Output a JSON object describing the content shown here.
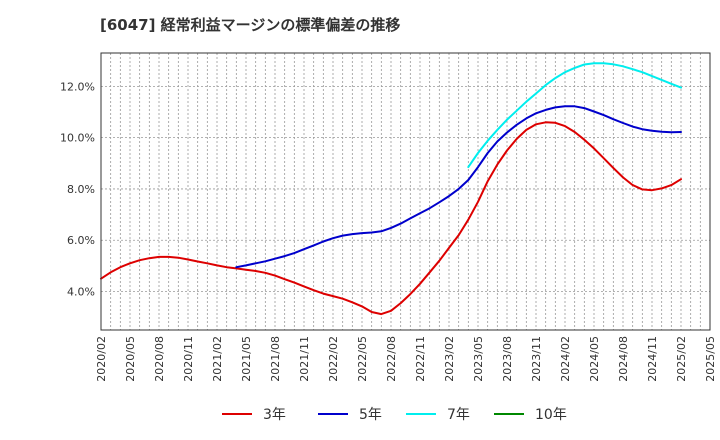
{
  "chart_data": {
    "type": "line",
    "title": "[6047]  経常利益マージンの標準偏差の推移",
    "xlabel": "",
    "ylabel": "",
    "ylim": [
      2.5,
      13.3
    ],
    "y_ticks": [
      "4.0%",
      "6.0%",
      "8.0%",
      "10.0%",
      "12.0%"
    ],
    "y_tick_values": [
      4,
      6,
      8,
      10,
      12
    ],
    "x_ticks": [
      "2020/02",
      "2020/05",
      "2020/08",
      "2020/11",
      "2021/02",
      "2021/05",
      "2021/08",
      "2021/11",
      "2022/02",
      "2022/05",
      "2022/08",
      "2022/11",
      "2023/02",
      "2023/05",
      "2023/08",
      "2023/11",
      "2024/02",
      "2024/05",
      "2024/08",
      "2024/11",
      "2025/02",
      "2025/05"
    ],
    "grid": true,
    "legend_position": "bottom",
    "series": [
      {
        "name": "3年",
        "color": "#dd0000",
        "points": [
          [
            "2020/02",
            4.5
          ],
          [
            "2020/03",
            4.75
          ],
          [
            "2020/04",
            4.95
          ],
          [
            "2020/05",
            5.1
          ],
          [
            "2020/06",
            5.22
          ],
          [
            "2020/07",
            5.3
          ],
          [
            "2020/08",
            5.35
          ],
          [
            "2020/09",
            5.35
          ],
          [
            "2020/10",
            5.32
          ],
          [
            "2020/11",
            5.25
          ],
          [
            "2020/12",
            5.17
          ],
          [
            "2021/01",
            5.1
          ],
          [
            "2021/02",
            5.02
          ],
          [
            "2021/03",
            4.95
          ],
          [
            "2021/04",
            4.9
          ],
          [
            "2021/05",
            4.85
          ],
          [
            "2021/06",
            4.8
          ],
          [
            "2021/07",
            4.73
          ],
          [
            "2021/08",
            4.62
          ],
          [
            "2021/09",
            4.48
          ],
          [
            "2021/10",
            4.35
          ],
          [
            "2021/11",
            4.2
          ],
          [
            "2021/12",
            4.05
          ],
          [
            "2022/01",
            3.92
          ],
          [
            "2022/02",
            3.82
          ],
          [
            "2022/03",
            3.72
          ],
          [
            "2022/04",
            3.58
          ],
          [
            "2022/05",
            3.42
          ],
          [
            "2022/06",
            3.2
          ],
          [
            "2022/07",
            3.12
          ],
          [
            "2022/08",
            3.25
          ],
          [
            "2022/09",
            3.55
          ],
          [
            "2022/10",
            3.9
          ],
          [
            "2022/11",
            4.3
          ],
          [
            "2022/12",
            4.75
          ],
          [
            "2023/01",
            5.2
          ],
          [
            "2023/02",
            5.7
          ],
          [
            "2023/03",
            6.2
          ],
          [
            "2023/04",
            6.8
          ],
          [
            "2023/05",
            7.5
          ],
          [
            "2023/06",
            8.3
          ],
          [
            "2023/07",
            8.95
          ],
          [
            "2023/08",
            9.5
          ],
          [
            "2023/09",
            9.95
          ],
          [
            "2023/10",
            10.3
          ],
          [
            "2023/11",
            10.52
          ],
          [
            "2023/12",
            10.6
          ],
          [
            "2024/01",
            10.58
          ],
          [
            "2024/02",
            10.45
          ],
          [
            "2024/03",
            10.22
          ],
          [
            "2024/04",
            9.92
          ],
          [
            "2024/05",
            9.58
          ],
          [
            "2024/06",
            9.2
          ],
          [
            "2024/07",
            8.82
          ],
          [
            "2024/08",
            8.45
          ],
          [
            "2024/09",
            8.15
          ],
          [
            "2024/10",
            7.98
          ],
          [
            "2024/11",
            7.95
          ],
          [
            "2024/12",
            8.02
          ],
          [
            "2025/01",
            8.15
          ],
          [
            "2025/02",
            8.38
          ]
        ]
      },
      {
        "name": "5年",
        "color": "#0000cc",
        "points": [
          [
            "2021/04",
            4.95
          ],
          [
            "2021/05",
            5.02
          ],
          [
            "2021/06",
            5.1
          ],
          [
            "2021/07",
            5.18
          ],
          [
            "2021/08",
            5.28
          ],
          [
            "2021/09",
            5.38
          ],
          [
            "2021/10",
            5.5
          ],
          [
            "2021/11",
            5.65
          ],
          [
            "2021/12",
            5.8
          ],
          [
            "2022/01",
            5.95
          ],
          [
            "2022/02",
            6.08
          ],
          [
            "2022/03",
            6.18
          ],
          [
            "2022/04",
            6.24
          ],
          [
            "2022/05",
            6.28
          ],
          [
            "2022/06",
            6.3
          ],
          [
            "2022/07",
            6.35
          ],
          [
            "2022/08",
            6.48
          ],
          [
            "2022/09",
            6.65
          ],
          [
            "2022/10",
            6.85
          ],
          [
            "2022/11",
            7.05
          ],
          [
            "2022/12",
            7.25
          ],
          [
            "2023/01",
            7.48
          ],
          [
            "2023/02",
            7.72
          ],
          [
            "2023/03",
            8.0
          ],
          [
            "2023/04",
            8.35
          ],
          [
            "2023/05",
            8.85
          ],
          [
            "2023/06",
            9.4
          ],
          [
            "2023/07",
            9.85
          ],
          [
            "2023/08",
            10.2
          ],
          [
            "2023/09",
            10.5
          ],
          [
            "2023/10",
            10.75
          ],
          [
            "2023/11",
            10.95
          ],
          [
            "2023/12",
            11.08
          ],
          [
            "2024/01",
            11.18
          ],
          [
            "2024/02",
            11.22
          ],
          [
            "2024/03",
            11.22
          ],
          [
            "2024/04",
            11.15
          ],
          [
            "2024/05",
            11.02
          ],
          [
            "2024/06",
            10.88
          ],
          [
            "2024/07",
            10.72
          ],
          [
            "2024/08",
            10.57
          ],
          [
            "2024/09",
            10.43
          ],
          [
            "2024/10",
            10.33
          ],
          [
            "2024/11",
            10.27
          ],
          [
            "2024/12",
            10.23
          ],
          [
            "2025/01",
            10.21
          ],
          [
            "2025/02",
            10.22
          ]
        ]
      },
      {
        "name": "7年",
        "color": "#00eeee",
        "points": [
          [
            "2023/04",
            8.85
          ],
          [
            "2023/05",
            9.4
          ],
          [
            "2023/06",
            9.88
          ],
          [
            "2023/07",
            10.3
          ],
          [
            "2023/08",
            10.7
          ],
          [
            "2023/09",
            11.05
          ],
          [
            "2023/10",
            11.4
          ],
          [
            "2023/11",
            11.72
          ],
          [
            "2023/12",
            12.05
          ],
          [
            "2024/01",
            12.32
          ],
          [
            "2024/02",
            12.55
          ],
          [
            "2024/03",
            12.72
          ],
          [
            "2024/04",
            12.85
          ],
          [
            "2024/05",
            12.9
          ],
          [
            "2024/06",
            12.9
          ],
          [
            "2024/07",
            12.86
          ],
          [
            "2024/08",
            12.78
          ],
          [
            "2024/09",
            12.67
          ],
          [
            "2024/10",
            12.55
          ],
          [
            "2024/11",
            12.4
          ],
          [
            "2024/12",
            12.25
          ],
          [
            "2025/01",
            12.1
          ],
          [
            "2025/02",
            11.95
          ]
        ]
      },
      {
        "name": "10年",
        "color": "#008800",
        "points": []
      }
    ]
  }
}
